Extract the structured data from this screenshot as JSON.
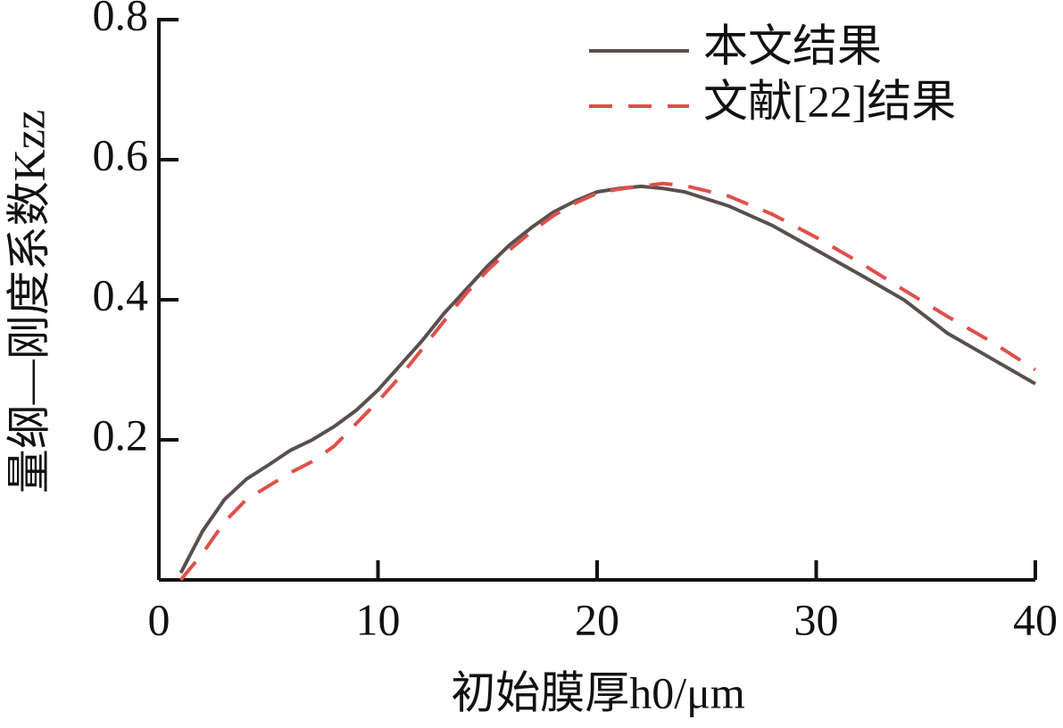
{
  "chart_data": {
    "type": "line",
    "x_label": "初始膜厚h0/μm",
    "y_label": "量纲—刚度系数Kzz",
    "x": [
      1,
      2,
      3,
      4,
      5,
      6,
      7,
      8,
      9,
      10,
      11,
      12,
      13,
      14,
      15,
      16,
      17,
      18,
      19,
      20,
      21,
      22,
      23,
      24,
      26,
      28,
      30,
      32,
      34,
      36,
      38,
      40
    ],
    "series": [
      {
        "name": "本文结果",
        "color": "#5a4f4f",
        "dash": false,
        "values": [
          0.01,
          0.07,
          0.115,
          0.144,
          0.164,
          0.185,
          0.2,
          0.219,
          0.242,
          0.271,
          0.306,
          0.341,
          0.38,
          0.414,
          0.448,
          0.478,
          0.503,
          0.525,
          0.541,
          0.554,
          0.559,
          0.562,
          0.559,
          0.554,
          0.534,
          0.506,
          0.471,
          0.436,
          0.4,
          0.352,
          0.316,
          0.28
        ]
      },
      {
        "name": "文献[22]结果",
        "color": "#e0504a",
        "dash": true,
        "values": [
          0,
          0.038,
          0.083,
          0.115,
          0.134,
          0.153,
          0.169,
          0.191,
          0.223,
          0.255,
          0.29,
          0.329,
          0.369,
          0.408,
          0.442,
          0.471,
          0.497,
          0.52,
          0.538,
          0.552,
          0.558,
          0.562,
          0.566,
          0.563,
          0.548,
          0.522,
          0.489,
          0.453,
          0.414,
          0.376,
          0.34,
          0.3
        ]
      }
    ],
    "xlim": [
      0,
      40
    ],
    "xticks": [
      0,
      10,
      20,
      30,
      40
    ],
    "ylim": [
      0,
      0.8
    ],
    "yticks": [
      0.2,
      0.4,
      0.6,
      0.8
    ],
    "legend": "upper right"
  }
}
